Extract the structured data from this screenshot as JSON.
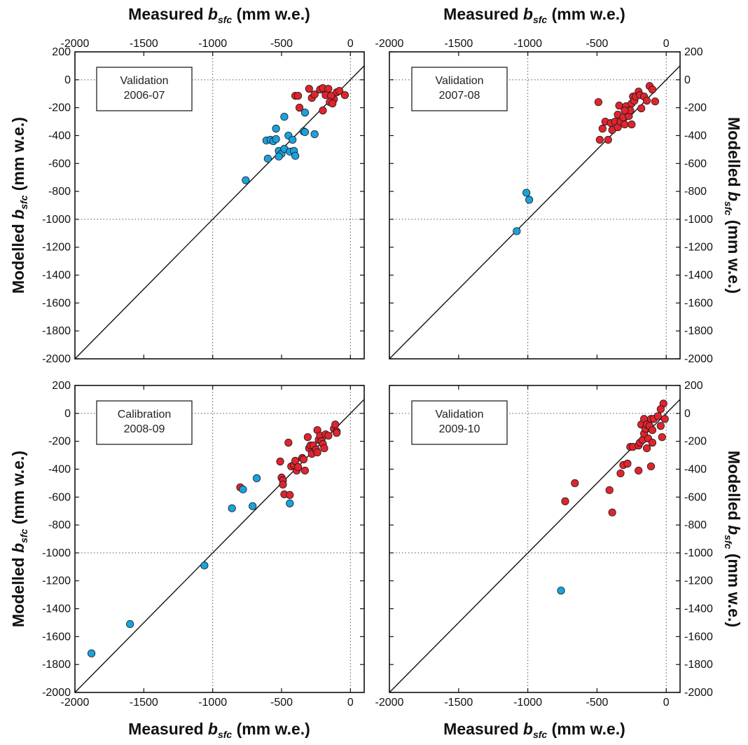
{
  "x_axis_label": {
    "main": "Measured ",
    "sym": "b",
    "sub": "sfc",
    "unit": " (mm w.e.)"
  },
  "y_axis_label": {
    "main": "Modelled ",
    "sym": "b",
    "sub": "sfc",
    "unit": " (mm w.e.)"
  },
  "colors": {
    "validation": "#1ba1dc",
    "calibration": "#e0242e",
    "marker_edge": "#1a1a1a"
  },
  "chart_data": [
    {
      "type": "scatter",
      "box_label": [
        "Validation",
        "2006-07"
      ],
      "xlim": [
        -2000,
        100
      ],
      "ylim": [
        -2000,
        200
      ],
      "xticks": [
        -2000,
        -1500,
        -1000,
        -500,
        0
      ],
      "yticks": [
        200,
        0,
        -200,
        -400,
        -600,
        -800,
        -1000,
        -1200,
        -1400,
        -1600,
        -1800,
        -2000
      ],
      "grid": "dotted at x=-1000, x=0, y=-1000, y=0",
      "one_to_one_line": true,
      "series": [
        {
          "color": "red",
          "points": [
            [
              -400,
              -115
            ],
            [
              -380,
              -115
            ],
            [
              -300,
              -65
            ],
            [
              -220,
              -70
            ],
            [
              -200,
              -60
            ],
            [
              -160,
              -65
            ],
            [
              -120,
              -140
            ],
            [
              -100,
              -90
            ],
            [
              -180,
              -110
            ],
            [
              -140,
              -115
            ],
            [
              -80,
              -80
            ],
            [
              -40,
              -110
            ],
            [
              -150,
              -160
            ],
            [
              -200,
              -220
            ],
            [
              -280,
              -130
            ],
            [
              -370,
              -200
            ],
            [
              -260,
              -105
            ],
            [
              -130,
              -170
            ]
          ]
        },
        {
          "color": "blue",
          "points": [
            [
              -760,
              -720
            ],
            [
              -610,
              -435
            ],
            [
              -580,
              -430
            ],
            [
              -600,
              -565
            ],
            [
              -560,
              -440
            ],
            [
              -540,
              -425
            ],
            [
              -540,
              -350
            ],
            [
              -520,
              -510
            ],
            [
              -500,
              -530
            ],
            [
              -520,
              -550
            ],
            [
              -480,
              -495
            ],
            [
              -480,
              -265
            ],
            [
              -450,
              -400
            ],
            [
              -440,
              -515
            ],
            [
              -420,
              -430
            ],
            [
              -410,
              -510
            ],
            [
              -400,
              -545
            ],
            [
              -340,
              -370
            ],
            [
              -330,
              -235
            ],
            [
              -330,
              -375
            ],
            [
              -260,
              -390
            ]
          ]
        }
      ]
    },
    {
      "type": "scatter",
      "box_label": [
        "Validation",
        "2007-08"
      ],
      "xlim": [
        -2000,
        100
      ],
      "ylim": [
        -2000,
        200
      ],
      "xticks": [
        -2000,
        -1500,
        -1000,
        -500,
        0
      ],
      "yticks": [
        200,
        0,
        -200,
        -400,
        -600,
        -800,
        -1000,
        -1200,
        -1400,
        -1600,
        -1800,
        -2000
      ],
      "grid": "dotted at x=-1000, x=0, y=-1000, y=0",
      "one_to_one_line": true,
      "series": [
        {
          "color": "red",
          "points": [
            [
              -490,
              -160
            ],
            [
              -480,
              -430
            ],
            [
              -460,
              -350
            ],
            [
              -440,
              -300
            ],
            [
              -420,
              -430
            ],
            [
              -400,
              -310
            ],
            [
              -390,
              -360
            ],
            [
              -370,
              -300
            ],
            [
              -350,
              -340
            ],
            [
              -350,
              -250
            ],
            [
              -340,
              -185
            ],
            [
              -330,
              -300
            ],
            [
              -310,
              -270
            ],
            [
              -300,
              -320
            ],
            [
              -290,
              -190
            ],
            [
              -280,
              -230
            ],
            [
              -270,
              -260
            ],
            [
              -260,
              -220
            ],
            [
              -250,
              -170
            ],
            [
              -250,
              -320
            ],
            [
              -240,
              -120
            ],
            [
              -230,
              -150
            ],
            [
              -220,
              -120
            ],
            [
              -200,
              -85
            ],
            [
              -190,
              -110
            ],
            [
              -180,
              -205
            ],
            [
              -160,
              -120
            ],
            [
              -140,
              -150
            ],
            [
              -120,
              -45
            ],
            [
              -100,
              -70
            ],
            [
              -80,
              -155
            ],
            [
              -300,
              -220
            ]
          ]
        },
        {
          "color": "blue",
          "points": [
            [
              -1080,
              -1085
            ],
            [
              -1010,
              -810
            ],
            [
              -990,
              -860
            ]
          ]
        }
      ]
    },
    {
      "type": "scatter",
      "box_label": [
        "Calibration",
        "2008-09"
      ],
      "xlim": [
        -2000,
        100
      ],
      "ylim": [
        -2000,
        200
      ],
      "xticks": [
        -2000,
        -1500,
        -1000,
        -500,
        0
      ],
      "yticks": [
        200,
        0,
        -200,
        -400,
        -600,
        -800,
        -1000,
        -1200,
        -1400,
        -1600,
        -1800,
        -2000
      ],
      "grid": "dotted at x=-1000, x=0, y=-1000, y=0",
      "one_to_one_line": true,
      "series": [
        {
          "color": "red",
          "points": [
            [
              -800,
              -530
            ],
            [
              -510,
              -345
            ],
            [
              -500,
              -460
            ],
            [
              -490,
              -480
            ],
            [
              -490,
              -510
            ],
            [
              -480,
              -580
            ],
            [
              -450,
              -210
            ],
            [
              -440,
              -585
            ],
            [
              -430,
              -380
            ],
            [
              -410,
              -370
            ],
            [
              -400,
              -340
            ],
            [
              -390,
              -410
            ],
            [
              -380,
              -385
            ],
            [
              -350,
              -320
            ],
            [
              -340,
              -330
            ],
            [
              -330,
              -410
            ],
            [
              -310,
              -170
            ],
            [
              -300,
              -250
            ],
            [
              -290,
              -230
            ],
            [
              -280,
              -290
            ],
            [
              -270,
              -230
            ],
            [
              -250,
              -260
            ],
            [
              -240,
              -120
            ],
            [
              -240,
              -280
            ],
            [
              -230,
              -190
            ],
            [
              -220,
              -160
            ],
            [
              -210,
              -200
            ],
            [
              -200,
              -220
            ],
            [
              -190,
              -250
            ],
            [
              -180,
              -150
            ],
            [
              -160,
              -160
            ],
            [
              -120,
              -110
            ],
            [
              -110,
              -80
            ],
            [
              -100,
              -130
            ],
            [
              -100,
              -140
            ]
          ]
        },
        {
          "color": "blue",
          "points": [
            [
              -1880,
              -1720
            ],
            [
              -1600,
              -1510
            ],
            [
              -1060,
              -1090
            ],
            [
              -860,
              -680
            ],
            [
              -780,
              -545
            ],
            [
              -710,
              -665
            ],
            [
              -680,
              -465
            ],
            [
              -440,
              -645
            ]
          ]
        }
      ]
    },
    {
      "type": "scatter",
      "box_label": [
        "Validation",
        "2009-10"
      ],
      "xlim": [
        -2000,
        100
      ],
      "ylim": [
        -2000,
        200
      ],
      "xticks": [
        -2000,
        -1500,
        -1000,
        -500,
        0
      ],
      "yticks": [
        200,
        0,
        -200,
        -400,
        -600,
        -800,
        -1000,
        -1200,
        -1400,
        -1600,
        -1800,
        -2000
      ],
      "grid": "dotted at x=-1000, x=0, y=-1000, y=0",
      "one_to_one_line": true,
      "series": [
        {
          "color": "red",
          "points": [
            [
              -730,
              -630
            ],
            [
              -660,
              -500
            ],
            [
              -410,
              -550
            ],
            [
              -390,
              -710
            ],
            [
              -330,
              -430
            ],
            [
              -310,
              -370
            ],
            [
              -280,
              -360
            ],
            [
              -260,
              -240
            ],
            [
              -240,
              -240
            ],
            [
              -200,
              -410
            ],
            [
              -200,
              -230
            ],
            [
              -190,
              -210
            ],
            [
              -180,
              -80
            ],
            [
              -170,
              -190
            ],
            [
              -160,
              -145
            ],
            [
              -160,
              -40
            ],
            [
              -150,
              -110
            ],
            [
              -140,
              -250
            ],
            [
              -140,
              -80
            ],
            [
              -130,
              -180
            ],
            [
              -120,
              -90
            ],
            [
              -110,
              -40
            ],
            [
              -110,
              -380
            ],
            [
              -100,
              -210
            ],
            [
              -100,
              -120
            ],
            [
              -90,
              -40
            ],
            [
              -60,
              -20
            ],
            [
              -40,
              -90
            ],
            [
              -30,
              -170
            ],
            [
              -20,
              70
            ],
            [
              -10,
              -40
            ],
            [
              -40,
              30
            ]
          ]
        },
        {
          "color": "blue",
          "points": [
            [
              -760,
              -1270
            ]
          ]
        }
      ]
    }
  ]
}
